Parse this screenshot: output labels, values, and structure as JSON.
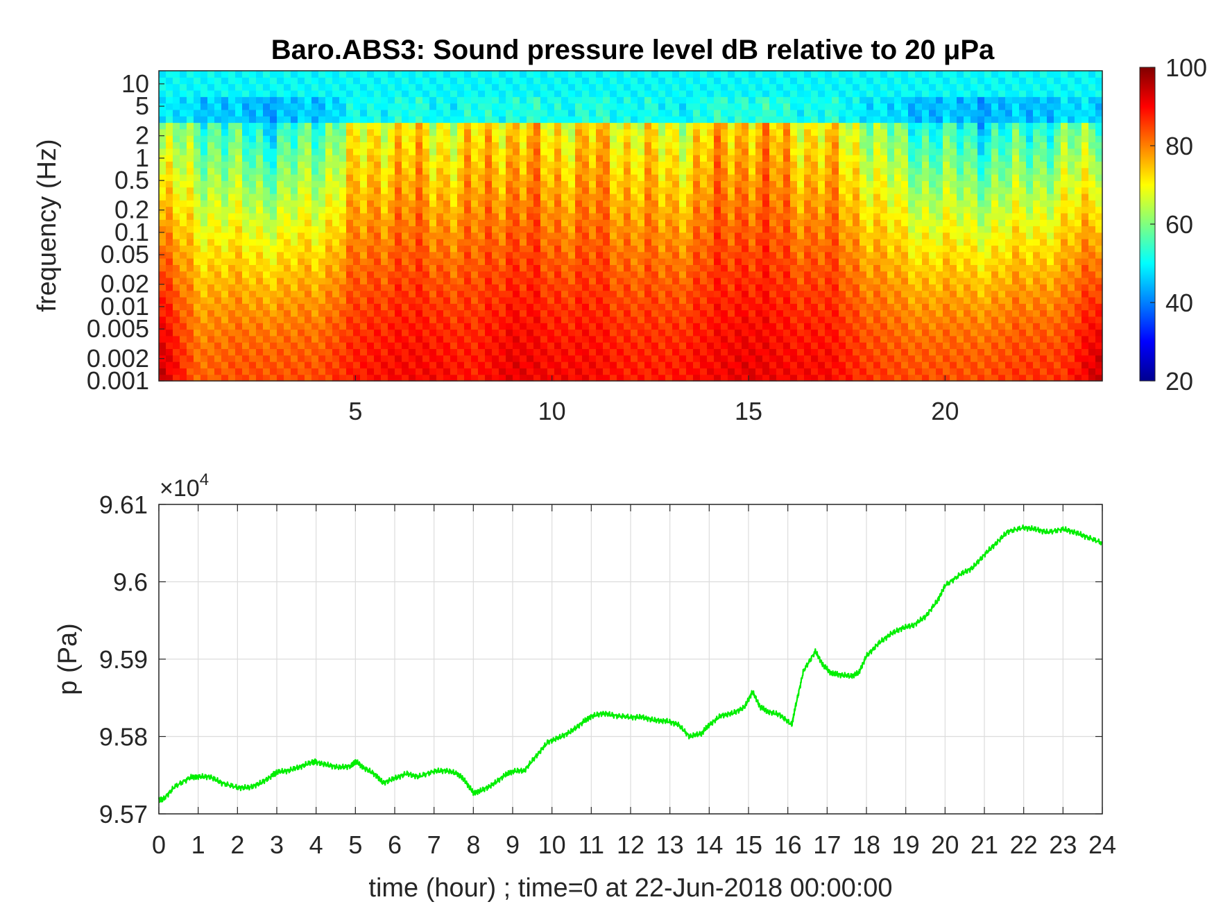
{
  "chart_data": [
    {
      "type": "heatmap",
      "title": "Baro.ABS3: Sound pressure level dB relative to 20 μPa",
      "ylabel": "frequency (Hz)",
      "xlabel": "",
      "xlim": [
        0,
        24
      ],
      "x_ticks": [
        5,
        10,
        15,
        20
      ],
      "x_tick_labels": [
        "5",
        "10",
        "15",
        "20"
      ],
      "ylim": [
        0.001,
        15
      ],
      "y_scale": "log",
      "y_ticks": [
        0.001,
        0.002,
        0.005,
        0.01,
        0.02,
        0.05,
        0.1,
        0.2,
        0.5,
        1,
        2,
        5,
        10
      ],
      "y_tick_labels": [
        "0.001",
        "0.002",
        "0.005",
        "0.01",
        "0.02",
        "0.05",
        "0.1",
        "0.2",
        "0.5",
        "1",
        "2",
        "5",
        "10"
      ],
      "colormap": "jet",
      "colorbar": {
        "range": [
          20,
          100
        ],
        "ticks": [
          20,
          40,
          60,
          80,
          100
        ],
        "tick_labels": [
          "20",
          "40",
          "60",
          "80",
          "100"
        ],
        "position": "right"
      },
      "level_profile": {
        "time_hour": [
          0,
          1,
          2,
          3,
          4,
          5,
          6,
          7,
          8,
          9,
          10,
          11,
          12,
          13,
          14,
          15,
          16,
          17,
          18,
          19,
          20,
          21,
          22,
          23,
          24
        ],
        "high_freq_level_db": [
          60,
          58,
          52,
          50,
          55,
          66,
          72,
          68,
          70,
          74,
          70,
          72,
          70,
          66,
          72,
          76,
          72,
          70,
          64,
          54,
          52,
          50,
          52,
          56,
          60
        ],
        "low_freq_level_db": [
          95,
          82,
          84,
          84,
          84,
          88,
          90,
          90,
          88,
          92,
          90,
          90,
          88,
          88,
          90,
          92,
          90,
          90,
          86,
          84,
          84,
          84,
          86,
          86,
          95
        ]
      },
      "grid": false
    },
    {
      "type": "line",
      "title": "",
      "xlabel": "time (hour) ; time=0 at 22-Jun-2018 00:00:00",
      "ylabel": "p (Pa)",
      "xlim": [
        0,
        24
      ],
      "ylim": [
        95700,
        96100
      ],
      "x_ticks": [
        0,
        1,
        2,
        3,
        4,
        5,
        6,
        7,
        8,
        9,
        10,
        11,
        12,
        13,
        14,
        15,
        16,
        17,
        18,
        19,
        20,
        21,
        22,
        23,
        24
      ],
      "x_tick_labels": [
        "0",
        "1",
        "2",
        "3",
        "4",
        "5",
        "6",
        "7",
        "8",
        "9",
        "10",
        "11",
        "12",
        "13",
        "14",
        "15",
        "16",
        "17",
        "18",
        "19",
        "20",
        "21",
        "22",
        "23",
        "24"
      ],
      "y_ticks": [
        95700,
        95800,
        95900,
        96000,
        96100
      ],
      "y_tick_labels": [
        "9.57",
        "9.58",
        "9.59",
        "9.6",
        "9.61"
      ],
      "y_exponent_label": "×10",
      "y_exponent_power": "4",
      "grid": true,
      "line_color": "#00ee00",
      "series": [
        {
          "x": [
            0,
            0.1,
            0.4,
            0.8,
            1.0,
            1.3,
            1.6,
            2.0,
            2.3,
            2.6,
            2.9,
            3.0,
            3.3,
            3.6,
            3.9,
            4.0,
            4.3,
            4.6,
            4.9,
            5.0,
            5.2,
            5.5,
            5.7,
            6.0,
            6.3,
            6.6,
            7.0,
            7.3,
            7.6,
            7.8,
            8.0,
            8.2,
            8.5,
            8.8,
            9.0,
            9.3,
            9.6,
            9.9,
            10.2,
            10.5,
            10.8,
            11.0,
            11.3,
            11.6,
            12.0,
            12.3,
            12.6,
            12.9,
            13.2,
            13.5,
            13.8,
            14.0,
            14.3,
            14.6,
            14.9,
            15.1,
            15.3,
            15.5,
            15.8,
            16.1,
            16.2,
            16.4,
            16.7,
            16.9,
            17.1,
            17.3,
            17.6,
            17.8,
            18.0,
            18.3,
            18.6,
            18.9,
            19.2,
            19.5,
            19.8,
            20.0,
            20.4,
            20.7,
            21.0,
            21.3,
            21.6,
            22.0,
            22.3,
            22.6,
            23.0,
            23.3,
            23.6,
            24.0
          ],
          "y": [
            95719,
            95718,
            95735,
            95747,
            95748,
            95748,
            95740,
            95734,
            95734,
            95740,
            95750,
            95754,
            95756,
            95761,
            95767,
            95767,
            95763,
            95760,
            95762,
            95768,
            95760,
            95751,
            95740,
            95746,
            95752,
            95748,
            95755,
            95756,
            95752,
            95742,
            95727,
            95730,
            95738,
            95750,
            95755,
            95756,
            95775,
            95793,
            95799,
            95807,
            95819,
            95826,
            95830,
            95827,
            95825,
            95825,
            95821,
            95820,
            95816,
            95800,
            95804,
            95815,
            95827,
            95830,
            95838,
            95858,
            95838,
            95832,
            95828,
            95815,
            95840,
            95885,
            95910,
            95892,
            95882,
            95880,
            95878,
            95882,
            95904,
            95920,
            95932,
            95940,
            95944,
            95955,
            95975,
            95995,
            96010,
            96018,
            96035,
            96050,
            96065,
            96070,
            96068,
            96064,
            96068,
            96064,
            96058,
            96050
          ]
        }
      ]
    }
  ]
}
